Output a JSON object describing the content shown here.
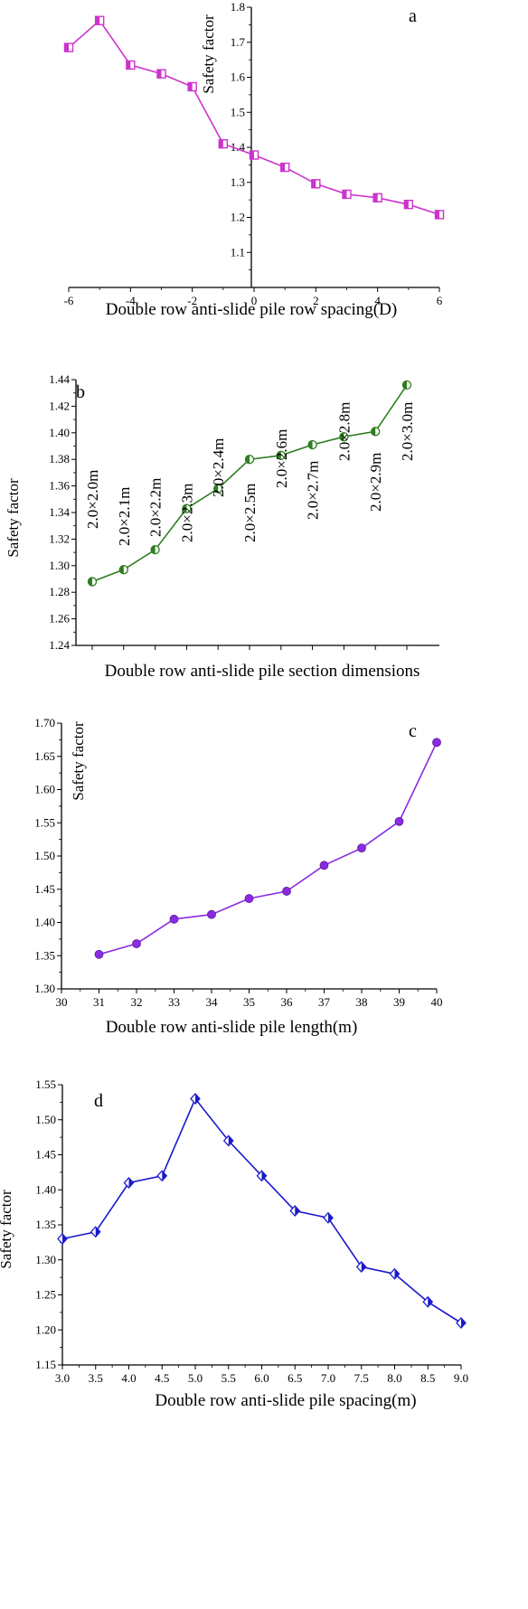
{
  "chart_data": [
    {
      "type": "line",
      "panel_label": "a",
      "xlabel": "Double row anti-slide pile row spacing(D)",
      "ylabel": "Safety factor",
      "xlim": [
        -6,
        6
      ],
      "ylim": [
        1.0,
        1.8
      ],
      "xticks": [
        -6,
        -4,
        -2,
        0,
        2,
        4,
        6
      ],
      "yticks": [
        1.1,
        1.2,
        1.3,
        1.4,
        1.5,
        1.6,
        1.7,
        1.8
      ],
      "tick_decimals": 1,
      "grid": false,
      "marker": "square",
      "color": "#cc33cc",
      "series": [
        {
          "x": [
            -6,
            -5,
            -4,
            -3,
            -2,
            -1,
            0,
            1,
            2,
            3,
            4,
            5,
            6
          ],
          "y": [
            1.685,
            1.762,
            1.635,
            1.61,
            1.573,
            1.41,
            1.378,
            1.343,
            1.296,
            1.266,
            1.256,
            1.237,
            1.208
          ]
        }
      ]
    },
    {
      "type": "line",
      "panel_label": "b",
      "xlabel": "Double row anti-slide pile section dimensions",
      "ylabel": "Safety factor",
      "ylim": [
        1.24,
        1.44
      ],
      "yticks": [
        1.24,
        1.26,
        1.28,
        1.3,
        1.32,
        1.34,
        1.36,
        1.38,
        1.4,
        1.42,
        1.44
      ],
      "tick_decimals": 2,
      "grid": false,
      "marker": "half-filled circle",
      "color": "#2e7d20",
      "categories": [
        "2.0×2.0m",
        "2.0×2.1m",
        "2.0×2.2m",
        "2.0×2.3m",
        "2.0×2.4m",
        "2.0×2.5m",
        "2.0×2.6m",
        "2.0×2.7m",
        "2.0×2.8m",
        "2.0×2.9m",
        "2.0×3.0m"
      ],
      "series": [
        {
          "values": [
            1.288,
            1.297,
            1.312,
            1.343,
            1.358,
            1.38,
            1.383,
            1.391,
            1.397,
            1.401,
            1.436
          ]
        }
      ]
    },
    {
      "type": "line",
      "panel_label": "c",
      "xlabel": "Double row anti-slide pile length(m)",
      "ylabel": "Safety factor",
      "xlim": [
        30,
        40
      ],
      "ylim": [
        1.3,
        1.7
      ],
      "xticks": [
        30,
        31,
        32,
        33,
        34,
        35,
        36,
        37,
        38,
        39,
        40
      ],
      "yticks": [
        1.3,
        1.35,
        1.4,
        1.45,
        1.5,
        1.55,
        1.6,
        1.65,
        1.7
      ],
      "tick_decimals": 2,
      "grid": false,
      "marker": "circle",
      "color": "#8a2be2",
      "series": [
        {
          "x": [
            31,
            32,
            33,
            34,
            35,
            36,
            37,
            38,
            39,
            40
          ],
          "y": [
            1.352,
            1.368,
            1.405,
            1.412,
            1.436,
            1.447,
            1.486,
            1.512,
            1.552,
            1.671
          ]
        }
      ]
    },
    {
      "type": "line",
      "panel_label": "d",
      "xlabel": "Double row anti-slide pile spacing(m)",
      "ylabel": "Safety factor",
      "xlim": [
        3.0,
        9.0
      ],
      "ylim": [
        1.15,
        1.55
      ],
      "xticks": [
        3.0,
        3.5,
        4.0,
        4.5,
        5.0,
        5.5,
        6.0,
        6.5,
        7.0,
        7.5,
        8.0,
        8.5,
        9.0
      ],
      "yticks": [
        1.15,
        1.2,
        1.25,
        1.3,
        1.35,
        1.4,
        1.45,
        1.5,
        1.55
      ],
      "tick_decimals": 2,
      "grid": false,
      "marker": "half-filled diamond",
      "color": "#1a1acc",
      "series": [
        {
          "x": [
            3.0,
            3.5,
            4.0,
            4.5,
            5.0,
            5.5,
            6.0,
            6.5,
            7.0,
            7.5,
            8.0,
            8.5,
            9.0
          ],
          "y": [
            1.33,
            1.34,
            1.41,
            1.42,
            1.53,
            1.47,
            1.42,
            1.37,
            1.36,
            1.29,
            1.28,
            1.24,
            1.21
          ]
        }
      ]
    }
  ]
}
